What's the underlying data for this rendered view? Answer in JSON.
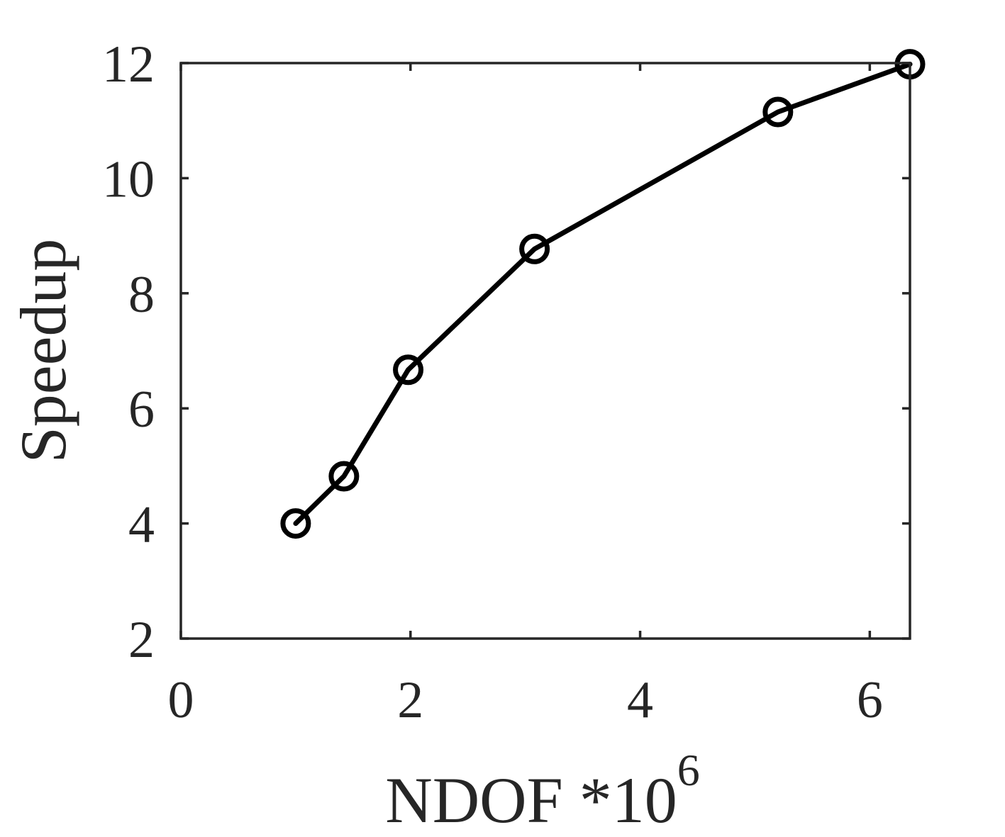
{
  "chart_data": {
    "type": "line",
    "xlabel": "NDOF *10",
    "xlabel_exponent": "6",
    "ylabel": "Speedup",
    "xlim": [
      0,
      6.35
    ],
    "ylim": [
      2,
      12
    ],
    "xticks": [
      0,
      2,
      4,
      6
    ],
    "yticks": [
      2,
      4,
      6,
      8,
      10,
      12
    ],
    "grid": false,
    "box": true,
    "series": [
      {
        "marker": "circle-open",
        "color": "#000000",
        "x": [
          1.0,
          1.42,
          1.98,
          3.08,
          5.2,
          6.35
        ],
        "y": [
          4.0,
          4.82,
          6.67,
          8.77,
          11.15,
          11.98
        ]
      }
    ]
  }
}
